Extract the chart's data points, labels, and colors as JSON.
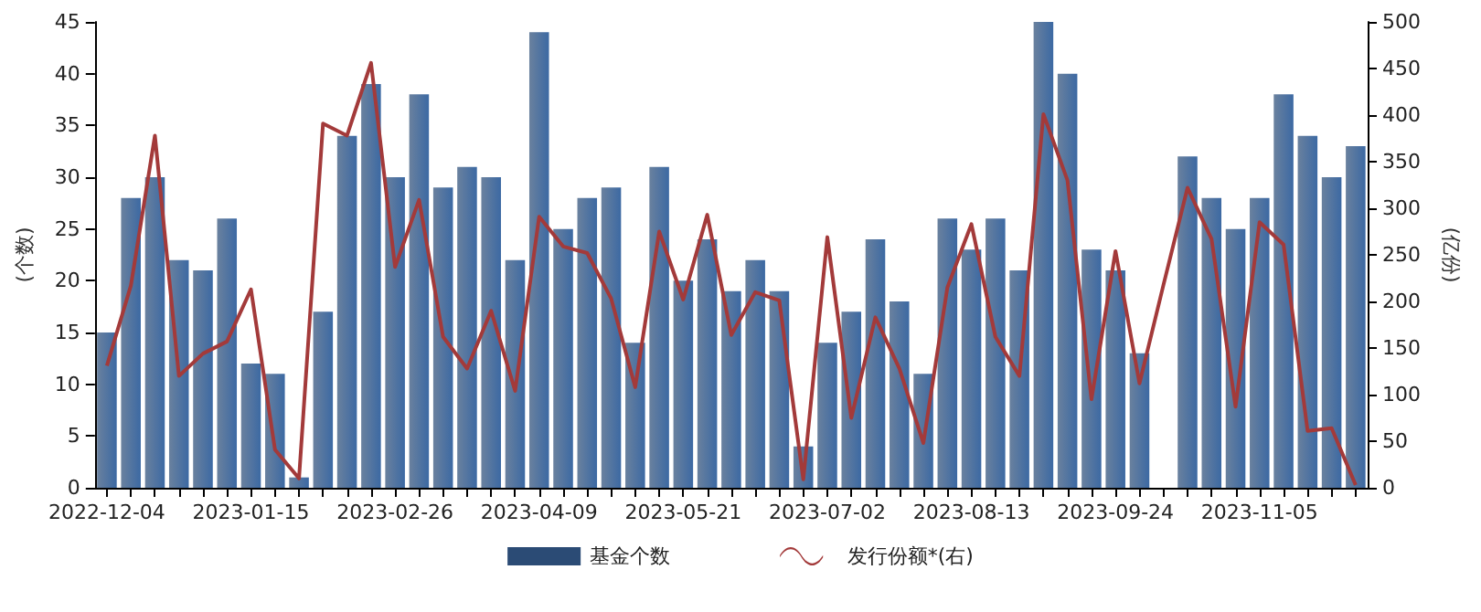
{
  "chart_data": {
    "type": "bar",
    "categories": [
      "2022-12-04",
      null,
      null,
      null,
      null,
      null,
      "2023-01-15",
      null,
      null,
      null,
      null,
      null,
      "2023-02-26",
      null,
      null,
      null,
      null,
      null,
      "2023-04-09",
      null,
      null,
      null,
      null,
      null,
      "2023-05-21",
      null,
      null,
      null,
      null,
      null,
      "2023-07-02",
      null,
      null,
      null,
      null,
      null,
      "2023-08-13",
      null,
      null,
      null,
      null,
      null,
      "2023-09-24",
      null,
      null,
      null,
      null,
      null,
      "2023-11-05",
      null,
      null,
      null,
      null
    ],
    "series": [
      {
        "name": "基金个数",
        "color": "#2b4b75",
        "values": [
          15,
          28,
          30,
          22,
          21,
          26,
          12,
          11,
          1,
          17,
          34,
          39,
          30,
          38,
          29,
          31,
          30,
          22,
          44,
          25,
          28,
          29,
          14,
          31,
          20,
          24,
          19,
          22,
          19,
          4,
          14,
          17,
          24,
          18,
          11,
          26,
          23,
          26,
          21,
          45,
          40,
          23,
          21,
          13,
          null,
          32,
          28,
          25,
          28,
          38,
          34,
          30,
          33
        ]
      },
      {
        "name": "发行份额*(右)",
        "type": "line",
        "axis": "y2",
        "color": "#a33a3a",
        "values": [
          131,
          217,
          378,
          120,
          144,
          157,
          213,
          41,
          10,
          391,
          378,
          456,
          237,
          309,
          162,
          128,
          190,
          104,
          291,
          259,
          252,
          203,
          108,
          275,
          202,
          293,
          164,
          210,
          201,
          9,
          269,
          75,
          183,
          128,
          48,
          215,
          283,
          162,
          120,
          401,
          330,
          95,
          254,
          112,
          218,
          322,
          267,
          87,
          285,
          261,
          61,
          64,
          3
        ]
      }
    ],
    "ylabel": "(个数)",
    "y2label": "(亿份)",
    "ylim": [
      0,
      45
    ],
    "yticks": [
      0,
      5,
      10,
      15,
      20,
      25,
      30,
      35,
      40,
      45
    ],
    "y2lim": [
      0,
      500
    ],
    "y2ticks": [
      0,
      50,
      100,
      150,
      200,
      250,
      300,
      350,
      400,
      450,
      500
    ],
    "legend": "bottom",
    "grid": false,
    "marker": "none"
  }
}
